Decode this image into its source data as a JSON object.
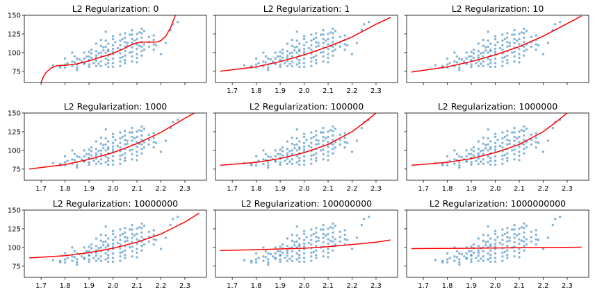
{
  "chart_data": [
    {
      "type": "scatter",
      "title": "L2 Regularization: 0",
      "xlim": [
        1.63,
        2.39
      ],
      "ylim": [
        60,
        150
      ],
      "xticks": [
        1.7,
        1.8,
        1.9,
        2.0,
        2.1,
        2.2,
        2.3
      ],
      "yticks": [
        75,
        100,
        125,
        150
      ],
      "show_ytick_labels": true,
      "show_xtick_labels": false,
      "fit_curve": {
        "x": [
          1.7,
          1.71,
          1.72,
          1.74,
          1.76,
          1.78,
          1.8,
          1.85,
          1.9,
          1.95,
          2.0,
          2.05,
          2.08,
          2.1,
          2.12,
          2.15,
          2.18,
          2.2,
          2.22,
          2.24,
          2.26
        ],
        "y": [
          60,
          68,
          73,
          79,
          82,
          83,
          83,
          85,
          89,
          94,
          99,
          106,
          111,
          113,
          114,
          114,
          114,
          116,
          122,
          133,
          150
        ]
      }
    },
    {
      "type": "scatter",
      "title": "L2 Regularization: 1",
      "xlim": [
        1.63,
        2.39
      ],
      "ylim": [
        60,
        150
      ],
      "xticks": [
        1.7,
        1.8,
        1.9,
        2.0,
        2.1,
        2.2,
        2.3
      ],
      "yticks": [
        75,
        100,
        125,
        150
      ],
      "show_ytick_labels": false,
      "show_xtick_labels": true,
      "fit_curve": {
        "x": [
          1.65,
          1.8,
          1.9,
          2.0,
          2.1,
          2.2,
          2.3,
          2.36
        ],
        "y": [
          75,
          81,
          88,
          97,
          108,
          121,
          138,
          147
        ]
      }
    },
    {
      "type": "scatter",
      "title": "L2 Regularization: 10",
      "xlim": [
        1.63,
        2.39
      ],
      "ylim": [
        60,
        150
      ],
      "xticks": [
        1.7,
        1.8,
        1.9,
        2.0,
        2.1,
        2.2,
        2.3
      ],
      "yticks": [
        75,
        100,
        125,
        150
      ],
      "show_ytick_labels": false,
      "show_xtick_labels": false,
      "fit_curve": {
        "x": [
          1.65,
          1.8,
          1.9,
          2.0,
          2.1,
          2.2,
          2.3,
          2.36
        ],
        "y": [
          74,
          81,
          88,
          97,
          108,
          122,
          139,
          149
        ]
      }
    },
    {
      "type": "scatter",
      "title": "L2 Regularization: 1000",
      "xlim": [
        1.63,
        2.39
      ],
      "ylim": [
        60,
        150
      ],
      "xticks": [
        1.7,
        1.8,
        1.9,
        2.0,
        2.1,
        2.2,
        2.3
      ],
      "yticks": [
        75,
        100,
        125,
        150
      ],
      "show_ytick_labels": true,
      "show_xtick_labels": true,
      "fit_curve": {
        "x": [
          1.65,
          1.8,
          1.9,
          2.0,
          2.1,
          2.2,
          2.3,
          2.34
        ],
        "y": [
          75,
          81,
          88,
          97,
          109,
          124,
          143,
          150
        ]
      }
    },
    {
      "type": "scatter",
      "title": "L2 Regularization: 100000",
      "xlim": [
        1.63,
        2.39
      ],
      "ylim": [
        60,
        150
      ],
      "xticks": [
        1.7,
        1.8,
        1.9,
        2.0,
        2.1,
        2.2,
        2.3
      ],
      "yticks": [
        75,
        100,
        125,
        150
      ],
      "show_ytick_labels": false,
      "show_xtick_labels": true,
      "fit_curve": {
        "x": [
          1.65,
          1.8,
          1.9,
          2.0,
          2.1,
          2.2,
          2.25,
          2.3
        ],
        "y": [
          80,
          84,
          89,
          97,
          108,
          125,
          137,
          150
        ]
      }
    },
    {
      "type": "scatter",
      "title": "L2 Regularization: 1000000",
      "xlim": [
        1.63,
        2.39
      ],
      "ylim": [
        60,
        150
      ],
      "xticks": [
        1.7,
        1.8,
        1.9,
        2.0,
        2.1,
        2.2,
        2.3
      ],
      "yticks": [
        75,
        100,
        125,
        150
      ],
      "show_ytick_labels": false,
      "show_xtick_labels": true,
      "fit_curve": {
        "x": [
          1.65,
          1.8,
          1.9,
          2.0,
          2.1,
          2.2,
          2.25,
          2.3
        ],
        "y": [
          80,
          84,
          89,
          97,
          108,
          125,
          137,
          150
        ]
      }
    },
    {
      "type": "scatter",
      "title": "L2 Regularization: 10000000",
      "xlim": [
        1.63,
        2.39
      ],
      "ylim": [
        60,
        150
      ],
      "xticks": [
        1.7,
        1.8,
        1.9,
        2.0,
        2.1,
        2.2,
        2.3
      ],
      "yticks": [
        75,
        100,
        125,
        150
      ],
      "show_ytick_labels": true,
      "show_xtick_labels": true,
      "fit_curve": {
        "x": [
          1.65,
          1.8,
          1.9,
          2.0,
          2.1,
          2.2,
          2.3,
          2.36
        ],
        "y": [
          86,
          89,
          93,
          99,
          107,
          118,
          134,
          146
        ]
      }
    },
    {
      "type": "scatter",
      "title": "L2 Regularization: 100000000",
      "xlim": [
        1.63,
        2.39
      ],
      "ylim": [
        60,
        150
      ],
      "xticks": [
        1.7,
        1.8,
        1.9,
        2.0,
        2.1,
        2.2,
        2.3
      ],
      "yticks": [
        75,
        100,
        125,
        150
      ],
      "show_ytick_labels": false,
      "show_xtick_labels": true,
      "fit_curve": {
        "x": [
          1.65,
          1.8,
          1.9,
          2.0,
          2.1,
          2.2,
          2.3,
          2.36
        ],
        "y": [
          96,
          97,
          98,
          99,
          101,
          104,
          107,
          110
        ]
      }
    },
    {
      "type": "scatter",
      "title": "L2 Regularization: 1000000000",
      "xlim": [
        1.63,
        2.39
      ],
      "ylim": [
        60,
        150
      ],
      "xticks": [
        1.7,
        1.8,
        1.9,
        2.0,
        2.1,
        2.2,
        2.3
      ],
      "yticks": [
        75,
        100,
        125,
        150
      ],
      "show_ytick_labels": false,
      "show_xtick_labels": true,
      "fit_curve": {
        "x": [
          1.65,
          1.8,
          1.9,
          2.0,
          2.1,
          2.2,
          2.3,
          2.36
        ],
        "y": [
          98.5,
          98.8,
          99,
          99.3,
          99.6,
          99.9,
          100.2,
          100.4
        ]
      }
    }
  ],
  "scatter_points": {
    "x": [
      1.75,
      1.78,
      1.78,
      1.8,
      1.8,
      1.8,
      1.81,
      1.83,
      1.83,
      1.83,
      1.84,
      1.84,
      1.85,
      1.85,
      1.85,
      1.85,
      1.86,
      1.87,
      1.88,
      1.88,
      1.88,
      1.88,
      1.89,
      1.9,
      1.9,
      1.9,
      1.9,
      1.9,
      1.9,
      1.91,
      1.91,
      1.91,
      1.92,
      1.93,
      1.93,
      1.93,
      1.93,
      1.93,
      1.93,
      1.94,
      1.94,
      1.95,
      1.95,
      1.95,
      1.95,
      1.95,
      1.95,
      1.96,
      1.96,
      1.97,
      1.97,
      1.97,
      1.97,
      1.97,
      1.97,
      1.98,
      1.98,
      1.98,
      1.98,
      1.98,
      1.98,
      1.98,
      2.0,
      2.0,
      2.0,
      2.0,
      2.0,
      2.0,
      2.0,
      2.0,
      2.0,
      2.01,
      2.02,
      2.03,
      2.03,
      2.03,
      2.03,
      2.03,
      2.03,
      2.03,
      2.03,
      2.04,
      2.04,
      2.05,
      2.05,
      2.05,
      2.05,
      2.05,
      2.05,
      2.05,
      2.05,
      2.06,
      2.06,
      2.07,
      2.07,
      2.08,
      2.08,
      2.08,
      2.08,
      2.08,
      2.08,
      2.08,
      2.08,
      2.09,
      2.1,
      2.1,
      2.1,
      2.1,
      2.1,
      2.1,
      2.1,
      2.11,
      2.11,
      2.12,
      2.12,
      2.12,
      2.12,
      2.12,
      2.12,
      2.12,
      2.13,
      2.13,
      2.13,
      2.15,
      2.15,
      2.15,
      2.17,
      2.17,
      2.17,
      2.17,
      2.18,
      2.2,
      2.22,
      2.24,
      2.25,
      2.27
    ],
    "y": [
      83,
      82,
      80,
      80,
      92,
      84,
      86,
      82,
      100,
      88,
      95,
      87,
      92,
      77,
      80,
      84,
      91,
      88,
      86,
      100,
      92,
      85,
      95,
      101,
      90,
      81,
      95,
      89,
      84,
      104,
      99,
      93,
      86,
      112,
      102,
      89,
      82,
      93,
      96,
      99,
      85,
      117,
      109,
      100,
      95,
      88,
      82,
      103,
      107,
      128,
      116,
      108,
      100,
      92,
      84,
      104,
      112,
      96,
      90,
      102,
      86,
      81,
      118,
      122,
      110,
      105,
      98,
      92,
      86,
      81,
      101,
      114,
      106,
      124,
      116,
      110,
      104,
      99,
      93,
      88,
      82,
      118,
      94,
      126,
      120,
      114,
      108,
      102,
      96,
      90,
      86,
      113,
      109,
      124,
      100,
      130,
      124,
      118,
      113,
      107,
      101,
      95,
      88,
      116,
      125,
      118,
      111,
      105,
      98,
      93,
      87,
      127,
      109,
      132,
      126,
      120,
      114,
      108,
      102,
      96,
      129,
      111,
      104,
      121,
      114,
      108,
      123,
      117,
      111,
      104,
      110,
      98,
      113,
      130,
      138,
      141
    ]
  }
}
